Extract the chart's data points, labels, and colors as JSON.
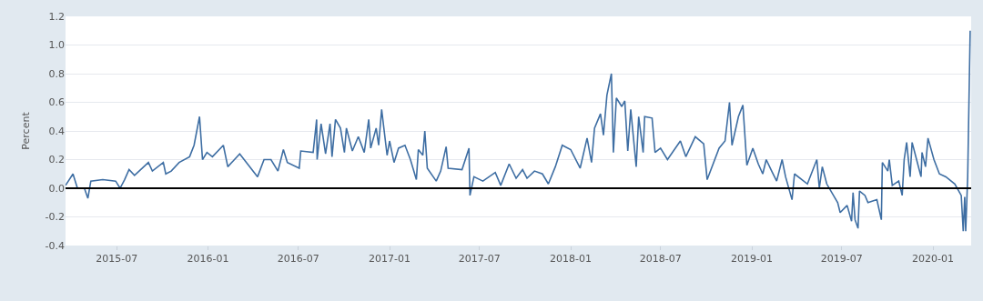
{
  "chart_data": {
    "type": "line",
    "ylabel": "Percent",
    "x": [
      "2015-03-20",
      "2015-04-04",
      "2015-04-13",
      "2015-04-27",
      "2015-05-04",
      "2015-05-10",
      "2015-06-03",
      "2015-06-29",
      "2015-07-08",
      "2015-07-17",
      "2015-07-26",
      "2015-08-06",
      "2015-09-03",
      "2015-09-11",
      "2015-10-03",
      "2015-10-08",
      "2015-10-19",
      "2015-11-04",
      "2015-11-25",
      "2015-12-04",
      "2015-12-15",
      "2015-12-21",
      "2015-12-30",
      "2016-01-10",
      "2016-02-01",
      "2016-02-10",
      "2016-03-05",
      "2016-04-10",
      "2016-04-23",
      "2016-05-07",
      "2016-05-21",
      "2016-06-01",
      "2016-06-09",
      "2016-07-03",
      "2016-07-06",
      "2016-07-31",
      "2016-08-07",
      "2016-08-08",
      "2016-08-16",
      "2016-08-25",
      "2016-09-03",
      "2016-09-07",
      "2016-09-14",
      "2016-09-24",
      "2016-10-02",
      "2016-10-06",
      "2016-10-18",
      "2016-10-30",
      "2016-11-11",
      "2016-11-20",
      "2016-11-24",
      "2016-12-05",
      "2016-12-10",
      "2016-12-16",
      "2016-12-27",
      "2017-01-01",
      "2017-01-10",
      "2017-01-19",
      "2017-02-01",
      "2017-02-12",
      "2017-02-24",
      "2017-02-28",
      "2017-03-09",
      "2017-03-13",
      "2017-03-18",
      "2017-04-05",
      "2017-04-14",
      "2017-04-25",
      "2017-04-29",
      "2017-05-27",
      "2017-06-10",
      "2017-06-12",
      "2017-06-20",
      "2017-07-08",
      "2017-08-02",
      "2017-08-13",
      "2017-08-30",
      "2017-09-13",
      "2017-09-26",
      "2017-10-05",
      "2017-10-20",
      "2017-11-05",
      "2017-11-17",
      "2017-12-01",
      "2017-12-15",
      "2018-01-01",
      "2018-01-20",
      "2018-02-03",
      "2018-02-12",
      "2018-02-18",
      "2018-03-02",
      "2018-03-08",
      "2018-03-15",
      "2018-03-24",
      "2018-03-28",
      "2018-04-03",
      "2018-04-14",
      "2018-04-20",
      "2018-04-26",
      "2018-05-02",
      "2018-05-13",
      "2018-05-18",
      "2018-05-27",
      "2018-05-30",
      "2018-06-14",
      "2018-06-20",
      "2018-07-01",
      "2018-07-15",
      "2018-08-10",
      "2018-08-21",
      "2018-09-09",
      "2018-09-26",
      "2018-10-03",
      "2018-10-27",
      "2018-11-08",
      "2018-11-17",
      "2018-11-22",
      "2018-12-05",
      "2018-12-14",
      "2018-12-22",
      "2019-01-03",
      "2019-01-14",
      "2019-01-23",
      "2019-01-30",
      "2019-02-10",
      "2019-02-20",
      "2019-03-03",
      "2019-03-10",
      "2019-03-23",
      "2019-03-28",
      "2019-04-23",
      "2019-05-12",
      "2019-05-17",
      "2019-05-23",
      "2019-06-01",
      "2019-06-23",
      "2019-06-28",
      "2019-07-12",
      "2019-07-21",
      "2019-07-24",
      "2019-07-28",
      "2019-08-03",
      "2019-08-06",
      "2019-08-17",
      "2019-08-23",
      "2019-09-10",
      "2019-09-19",
      "2019-09-21",
      "2019-10-02",
      "2019-10-05",
      "2019-10-11",
      "2019-10-24",
      "2019-10-31",
      "2019-11-04",
      "2019-11-09",
      "2019-11-16",
      "2019-11-20",
      "2019-11-29",
      "2019-12-08",
      "2019-12-10",
      "2019-12-17",
      "2019-12-22",
      "2020-01-03",
      "2020-01-14",
      "2020-01-27",
      "2020-02-14",
      "2020-02-27",
      "2020-03-02",
      "2020-03-05",
      "2020-03-07",
      "2020-03-11",
      "2020-03-16"
    ],
    "series": [
      {
        "color": "#3e6ea3",
        "values": [
          0.02,
          0.1,
          0.0,
          0.0,
          -0.07,
          0.05,
          0.06,
          0.05,
          0.0,
          0.06,
          0.13,
          0.09,
          0.18,
          0.12,
          0.18,
          0.1,
          0.12,
          0.18,
          0.22,
          0.3,
          0.5,
          0.2,
          0.25,
          0.22,
          0.3,
          0.15,
          0.24,
          0.08,
          0.2,
          0.2,
          0.12,
          0.27,
          0.18,
          0.14,
          0.26,
          0.25,
          0.48,
          0.2,
          0.45,
          0.24,
          0.45,
          0.22,
          0.48,
          0.42,
          0.25,
          0.42,
          0.26,
          0.36,
          0.25,
          0.48,
          0.28,
          0.42,
          0.3,
          0.55,
          0.23,
          0.33,
          0.18,
          0.28,
          0.3,
          0.2,
          0.06,
          0.27,
          0.23,
          0.4,
          0.14,
          0.05,
          0.12,
          0.29,
          0.14,
          0.13,
          0.28,
          -0.05,
          0.08,
          0.05,
          0.11,
          0.02,
          0.17,
          0.07,
          0.13,
          0.07,
          0.12,
          0.1,
          0.03,
          0.15,
          0.3,
          0.27,
          0.14,
          0.35,
          0.18,
          0.42,
          0.52,
          0.37,
          0.65,
          0.8,
          0.25,
          0.63,
          0.57,
          0.61,
          0.26,
          0.55,
          0.15,
          0.5,
          0.25,
          0.5,
          0.49,
          0.25,
          0.28,
          0.2,
          0.33,
          0.22,
          0.36,
          0.31,
          0.06,
          0.28,
          0.33,
          0.6,
          0.3,
          0.5,
          0.58,
          0.16,
          0.28,
          0.17,
          0.1,
          0.2,
          0.12,
          0.05,
          0.2,
          0.08,
          -0.08,
          0.1,
          0.03,
          0.2,
          0.0,
          0.15,
          0.03,
          -0.1,
          -0.17,
          -0.12,
          -0.23,
          -0.03,
          -0.22,
          -0.28,
          -0.02,
          -0.05,
          -0.1,
          -0.08,
          -0.22,
          0.18,
          0.12,
          0.2,
          0.02,
          0.05,
          -0.05,
          0.2,
          0.32,
          0.08,
          0.32,
          0.2,
          0.08,
          0.25,
          0.15,
          0.35,
          0.2,
          0.1,
          0.08,
          0.03,
          -0.05,
          -0.3,
          -0.06,
          -0.3,
          0.08,
          1.1
        ]
      }
    ],
    "xlim": [
      "2015-03-20",
      "2020-03-18"
    ],
    "xticks": [
      {
        "value": "2015-07-01",
        "label": "2015-07"
      },
      {
        "value": "2016-01-01",
        "label": "2016-01"
      },
      {
        "value": "2016-07-01",
        "label": "2016-07"
      },
      {
        "value": "2017-01-01",
        "label": "2017-01"
      },
      {
        "value": "2017-07-01",
        "label": "2017-07"
      },
      {
        "value": "2018-01-01",
        "label": "2018-01"
      },
      {
        "value": "2018-07-01",
        "label": "2018-07"
      },
      {
        "value": "2019-01-01",
        "label": "2019-01"
      },
      {
        "value": "2019-07-01",
        "label": "2019-07"
      },
      {
        "value": "2020-01-01",
        "label": "2020-01"
      }
    ],
    "ylim": [
      -0.4,
      1.2
    ],
    "yticks": [
      {
        "value": -0.4,
        "label": "-0.4"
      },
      {
        "value": -0.2,
        "label": "-0.2"
      },
      {
        "value": 0,
        "label": "0.0"
      },
      {
        "value": 0.2,
        "label": "0.2"
      },
      {
        "value": 0.4,
        "label": "0.4"
      },
      {
        "value": 0.6,
        "label": "0.6"
      },
      {
        "value": 0.8,
        "label": "0.8"
      },
      {
        "value": 1.0,
        "label": "1.0"
      },
      {
        "value": 1.2,
        "label": "1.2"
      }
    ],
    "grid": "y",
    "legend": false,
    "marker": "none",
    "line_style": "solid",
    "ref_lines": [
      {
        "axis": "y",
        "value": 0,
        "color": "#000000"
      }
    ]
  }
}
